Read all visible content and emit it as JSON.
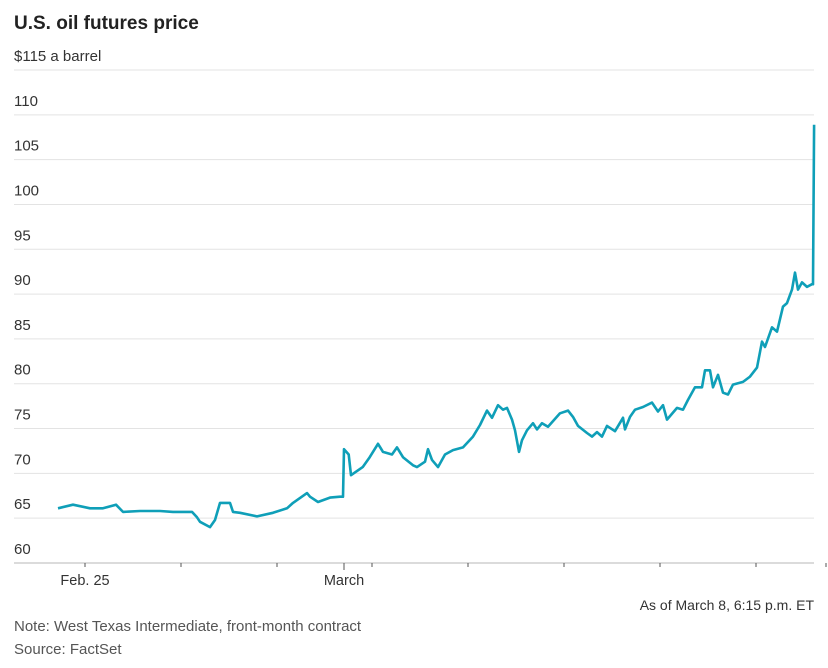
{
  "chart_data": {
    "type": "line",
    "title": "U.S. oil futures price",
    "ylabel": "",
    "xlabel": "",
    "y_unit_label": "$115 a barrel",
    "ylim": [
      60,
      115
    ],
    "y_ticks": [
      60,
      65,
      70,
      75,
      80,
      85,
      90,
      95,
      100,
      105,
      110,
      115
    ],
    "y_tick_labels": [
      "60",
      "65",
      "70",
      "75",
      "80",
      "85",
      "90",
      "95",
      "100",
      "105",
      "110",
      "$115 a barrel"
    ],
    "grid": true,
    "x_ticks": [
      {
        "t": "Feb 25 00:00",
        "label": "Feb. 25",
        "major": false
      },
      {
        "t": "Feb 26 00:00",
        "label": "",
        "major": false
      },
      {
        "t": "Feb 27 00:00",
        "label": "",
        "major": false
      },
      {
        "t": "Mar 1 18:00",
        "label": "March",
        "major": true
      },
      {
        "t": "Mar 2 00:00",
        "label": "",
        "major": false
      },
      {
        "t": "Mar 3 00:00",
        "label": "",
        "major": false
      },
      {
        "t": "Mar 4 00:00",
        "label": "",
        "major": false
      },
      {
        "t": "Mar 5 00:00",
        "label": "",
        "major": false
      },
      {
        "t": "Mar 6 00:00",
        "label": "",
        "major": false
      },
      {
        "t": "Mar 8 21:00",
        "label": "",
        "major": false
      }
    ],
    "color": "#0f9fb8",
    "series": [
      {
        "points": [
          [
            "Feb 24 17:15",
            66.1
          ],
          [
            "Feb 24 21:00",
            66.5
          ],
          [
            "Feb 25 01:15",
            66.1
          ],
          [
            "Feb 25 04:30",
            66.1
          ],
          [
            "Feb 25 07:45",
            66.5
          ],
          [
            "Feb 25 09:30",
            65.7
          ],
          [
            "Feb 25 13:45",
            65.8
          ],
          [
            "Feb 25 18:45",
            65.8
          ],
          [
            "Feb 25 22:00",
            65.7
          ],
          [
            "Feb 26 02:45",
            65.7
          ],
          [
            "Feb 26 04:00",
            65.1
          ],
          [
            "Feb 26 04:45",
            64.6
          ],
          [
            "Feb 26 07:15",
            64.0
          ],
          [
            "Feb 26 08:30",
            64.8
          ],
          [
            "Feb 26 09:45",
            66.7
          ],
          [
            "Feb 26 12:15",
            66.7
          ],
          [
            "Feb 26 13:00",
            65.7
          ],
          [
            "Feb 26 14:45",
            65.6
          ],
          [
            "Feb 26 19:00",
            65.2
          ],
          [
            "Feb 26 23:00",
            65.6
          ],
          [
            "Feb 27 02:30",
            66.1
          ],
          [
            "Feb 27 04:00",
            66.7
          ],
          [
            "Feb 27 07:30",
            67.8
          ],
          [
            "Feb 27 08:15",
            67.4
          ],
          [
            "Feb 27 10:15",
            66.8
          ],
          [
            "Feb 27 13:15",
            67.3
          ],
          [
            "Feb 27 15:45",
            67.4
          ],
          [
            "Feb 27 16:30",
            67.4
          ],
          [
            "Mar 1 18:00",
            72.7
          ],
          [
            "Mar 1 19:00",
            72.1
          ],
          [
            "Mar 1 19:30",
            69.8
          ],
          [
            "Mar 1 22:00",
            70.7
          ],
          [
            "Mar 1 23:30",
            71.8
          ],
          [
            "Mar 2 01:30",
            73.3
          ],
          [
            "Mar 2 02:45",
            72.4
          ],
          [
            "Mar 2 05:00",
            72.1
          ],
          [
            "Mar 2 06:15",
            72.9
          ],
          [
            "Mar 2 07:45",
            71.8
          ],
          [
            "Mar 2 10:15",
            70.9
          ],
          [
            "Mar 2 11:15",
            70.7
          ],
          [
            "Mar 2 13:15",
            71.3
          ],
          [
            "Mar 2 14:00",
            72.7
          ],
          [
            "Mar 2 15:00",
            71.5
          ],
          [
            "Mar 2 16:30",
            70.7
          ],
          [
            "Mar 2 18:15",
            72.1
          ],
          [
            "Mar 2 20:15",
            72.6
          ],
          [
            "Mar 2 22:45",
            72.9
          ],
          [
            "Mar 3 01:15",
            74.1
          ],
          [
            "Mar 3 03:00",
            75.4
          ],
          [
            "Mar 3 04:45",
            77.0
          ],
          [
            "Mar 3 06:00",
            76.2
          ],
          [
            "Mar 3 07:30",
            77.6
          ],
          [
            "Mar 3 08:45",
            77.1
          ],
          [
            "Mar 3 09:45",
            77.3
          ],
          [
            "Mar 3 11:00",
            76.0
          ],
          [
            "Mar 3 11:45",
            74.8
          ],
          [
            "Mar 3 12:45",
            72.4
          ],
          [
            "Mar 3 13:30",
            73.7
          ],
          [
            "Mar 3 14:45",
            74.8
          ],
          [
            "Mar 3 16:15",
            75.6
          ],
          [
            "Mar 3 17:15",
            74.9
          ],
          [
            "Mar 3 18:30",
            75.6
          ],
          [
            "Mar 3 20:00",
            75.2
          ],
          [
            "Mar 3 23:00",
            76.7
          ],
          [
            "Mar 4 01:00",
            77.0
          ],
          [
            "Mar 4 02:15",
            76.3
          ],
          [
            "Mar 4 03:30",
            75.3
          ],
          [
            "Mar 4 05:45",
            74.5
          ],
          [
            "Mar 4 07:00",
            74.1
          ],
          [
            "Mar 4 08:15",
            74.6
          ],
          [
            "Mar 4 09:30",
            74.1
          ],
          [
            "Mar 4 10:45",
            75.3
          ],
          [
            "Mar 4 12:45",
            74.7
          ],
          [
            "Mar 4 14:45",
            76.2
          ],
          [
            "Mar 4 15:15",
            74.9
          ],
          [
            "Mar 4 16:30",
            76.3
          ],
          [
            "Mar 4 17:45",
            77.1
          ],
          [
            "Mar 4 19:45",
            77.4
          ],
          [
            "Mar 4 22:00",
            77.9
          ],
          [
            "Mar 4 23:30",
            76.9
          ],
          [
            "Mar 5 00:45",
            77.6
          ],
          [
            "Mar 5 01:45",
            76.0
          ],
          [
            "Mar 5 04:15",
            77.3
          ],
          [
            "Mar 5 05:45",
            77.1
          ],
          [
            "Mar 5 07:00",
            78.2
          ],
          [
            "Mar 5 08:45",
            79.6
          ],
          [
            "Mar 5 10:30",
            79.6
          ],
          [
            "Mar 5 11:15",
            81.5
          ],
          [
            "Mar 5 12:30",
            81.5
          ],
          [
            "Mar 5 13:15",
            79.6
          ],
          [
            "Mar 5 14:30",
            81.0
          ],
          [
            "Mar 5 15:45",
            79.0
          ],
          [
            "Mar 5 17:00",
            78.8
          ],
          [
            "Mar 5 18:15",
            79.9
          ],
          [
            "Mar 5 20:45",
            80.2
          ],
          [
            "Mar 5 22:30",
            80.8
          ],
          [
            "Mar 6 00:15",
            81.8
          ],
          [
            "Mar 6 01:30",
            84.7
          ],
          [
            "Mar 6 02:15",
            84.1
          ],
          [
            "Mar 6 04:00",
            86.3
          ],
          [
            "Mar 6 05:15",
            85.8
          ],
          [
            "Mar 6 06:45",
            88.6
          ],
          [
            "Mar 6 07:45",
            89.0
          ],
          [
            "Mar 6 09:00",
            90.5
          ],
          [
            "Mar 6 09:45",
            92.4
          ],
          [
            "Mar 6 10:30",
            90.5
          ],
          [
            "Mar 6 11:30",
            91.3
          ],
          [
            "Mar 6 12:45",
            90.8
          ],
          [
            "Mar 6 14:00",
            91.1
          ],
          [
            "Mar 8 18:00",
            91.1
          ],
          [
            "Mar 8 18:15",
            108.9
          ]
        ]
      }
    ]
  },
  "footer": {
    "as_of": "As of March 8, 6:15 p.m. ET",
    "note": "Note: West Texas Intermediate, front-month contract",
    "source": "Source: FactSet"
  }
}
